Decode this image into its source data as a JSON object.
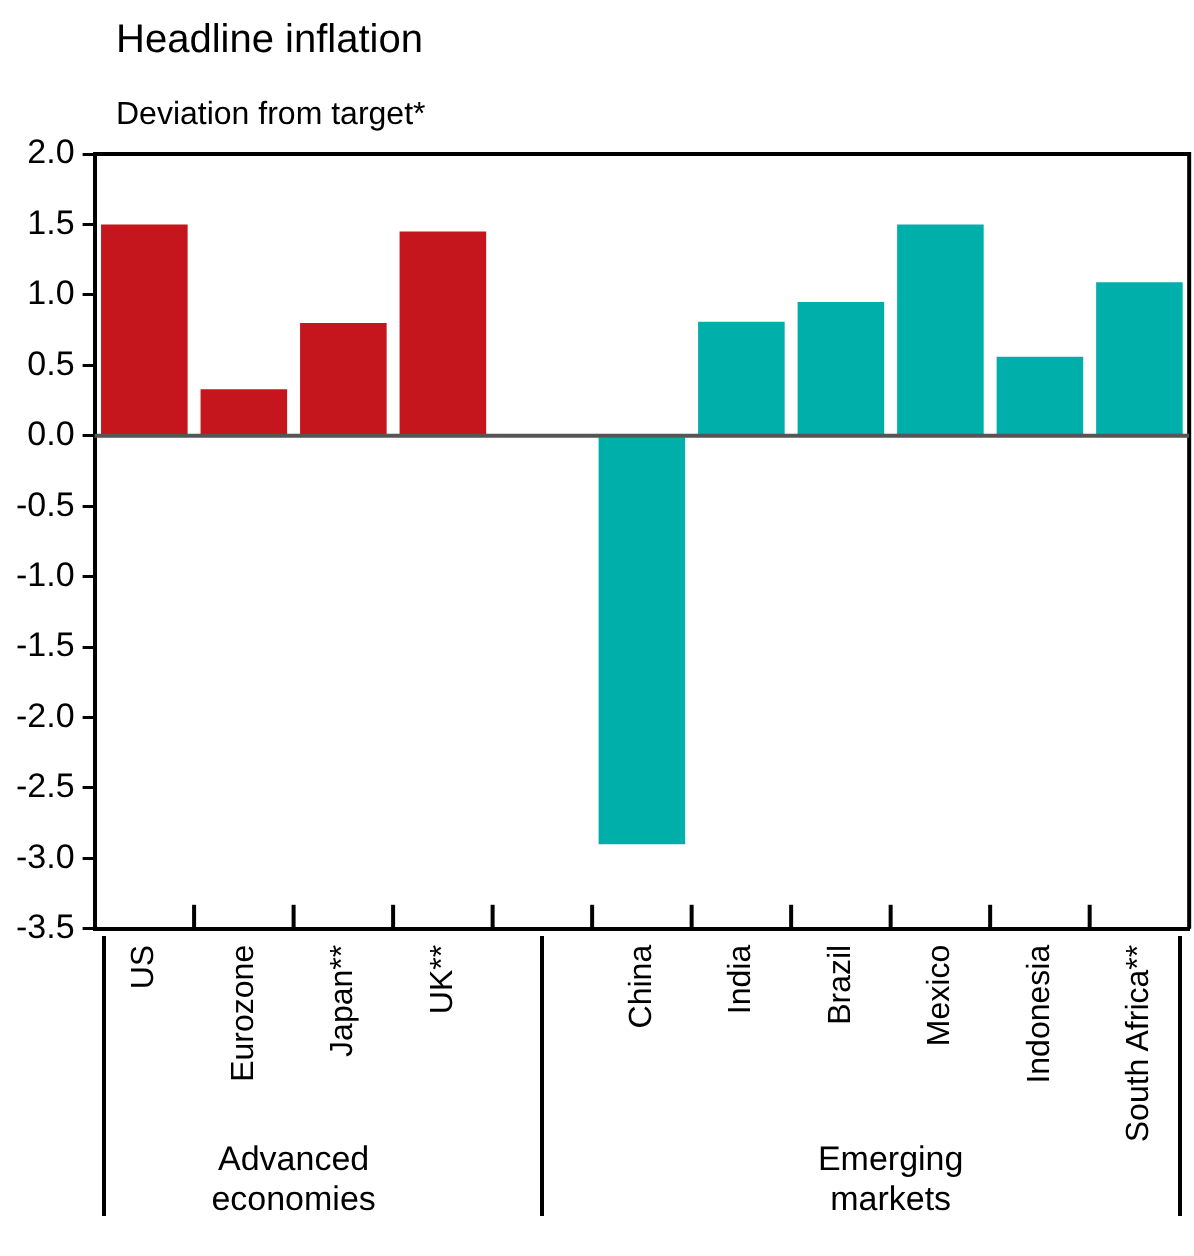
{
  "chart_data": {
    "type": "bar",
    "title": "Headline inflation",
    "subtitle": "Deviation from target*",
    "categories": [
      "US",
      "Eurozone",
      "Japan**",
      "UK**",
      null,
      "China",
      "India",
      "Brazil",
      "Mexico",
      "Indonesia",
      "South Africa**"
    ],
    "values": [
      1.5,
      0.33,
      0.8,
      1.45,
      null,
      -2.9,
      0.81,
      0.95,
      1.5,
      0.56,
      1.09
    ],
    "colors": [
      "#c4161c",
      "#c4161c",
      "#c4161c",
      "#c4161c",
      "#c4161c",
      "#00afa9",
      "#00afa9",
      "#00afa9",
      "#00afa9",
      "#00afa9",
      "#00afa9"
    ],
    "ylim": [
      -3.5,
      2.0
    ],
    "yticks": [
      {
        "value": 2,
        "label": "2.0"
      },
      {
        "value": 1.5,
        "label": "1.5"
      },
      {
        "value": 1,
        "label": "1.0"
      },
      {
        "value": 0.5,
        "label": "0.5"
      },
      {
        "value": 0,
        "label": "0.0"
      },
      {
        "value": -0.5,
        "label": "-0.5"
      },
      {
        "value": -1,
        "label": "-1.0"
      },
      {
        "value": -1.5,
        "label": "-1.5"
      },
      {
        "value": -2,
        "label": "-2.0"
      },
      {
        "value": -2.5,
        "label": "-2.5"
      },
      {
        "value": -3,
        "label": "-3.0"
      },
      {
        "value": -3.5,
        "label": "-3.5"
      }
    ],
    "annotations": [
      "Advanced economies",
      "Emerging markets"
    ],
    "ref_lines": [
      {
        "axis": "y",
        "value": 0,
        "color": "#555555"
      }
    ],
    "grid": false,
    "legend": false
  }
}
